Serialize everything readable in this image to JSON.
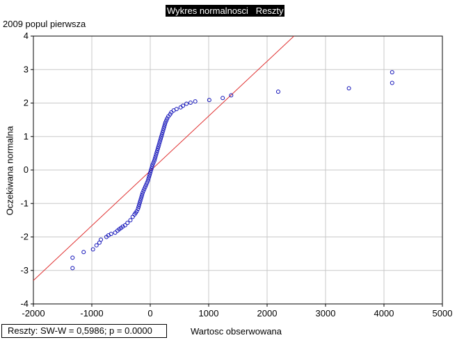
{
  "chart_data": {
    "type": "scatter",
    "title": "Wykres normalnosci   Reszty",
    "subtitle": "2009 popul pierwsza",
    "xlabel": "Wartosc obserwowana",
    "ylabel": "Oczekiwana normalna",
    "xlim": [
      -2000,
      5000
    ],
    "ylim": [
      -4,
      4
    ],
    "x_ticks": [
      "-2000",
      "-1000",
      "0",
      "1000",
      "2000",
      "3000",
      "4000",
      "5000"
    ],
    "y_ticks": [
      "4",
      "3",
      "2",
      "1",
      "0",
      "-1",
      "-2",
      "-3",
      "-4"
    ],
    "grid": true,
    "reference_line": {
      "x": [
        -2000,
        2460
      ],
      "y": [
        -3.3,
        4.0
      ],
      "color": "#e03030"
    },
    "point_color": "#1010b8",
    "stats_text": "Reszty:  SW-W = 0,5986; p = 0.0000",
    "series": [
      {
        "points": [
          [
            -1330,
            -2.93
          ],
          [
            -1330,
            -2.62
          ],
          [
            -1140,
            -2.45
          ],
          [
            -980,
            -2.37
          ],
          [
            -920,
            -2.25
          ],
          [
            -870,
            -2.17
          ],
          [
            -845,
            -2.08
          ],
          [
            -750,
            -2.0
          ],
          [
            -715,
            -1.95
          ],
          [
            -670,
            -1.91
          ],
          [
            -600,
            -1.87
          ],
          [
            -560,
            -1.81
          ],
          [
            -530,
            -1.77
          ],
          [
            -500,
            -1.73
          ],
          [
            -470,
            -1.69
          ],
          [
            -430,
            -1.65
          ],
          [
            -390,
            -1.58
          ],
          [
            -340,
            -1.5
          ],
          [
            -300,
            -1.4
          ],
          [
            -270,
            -1.33
          ],
          [
            -250,
            -1.28
          ],
          [
            -230,
            -1.23
          ],
          [
            -210,
            -1.16
          ],
          [
            -200,
            -1.1
          ],
          [
            -190,
            -1.04
          ],
          [
            -180,
            -0.98
          ],
          [
            -170,
            -0.92
          ],
          [
            -160,
            -0.86
          ],
          [
            -150,
            -0.8
          ],
          [
            -140,
            -0.74
          ],
          [
            -130,
            -0.68
          ],
          [
            -115,
            -0.62
          ],
          [
            -100,
            -0.56
          ],
          [
            -85,
            -0.5
          ],
          [
            -70,
            -0.44
          ],
          [
            -55,
            -0.38
          ],
          [
            -40,
            -0.32
          ],
          [
            -30,
            -0.26
          ],
          [
            -20,
            -0.2
          ],
          [
            -10,
            -0.14
          ],
          [
            0,
            -0.08
          ],
          [
            10,
            -0.02
          ],
          [
            20,
            0.04
          ],
          [
            30,
            0.1
          ],
          [
            40,
            0.16
          ],
          [
            55,
            0.22
          ],
          [
            70,
            0.28
          ],
          [
            80,
            0.34
          ],
          [
            90,
            0.4
          ],
          [
            100,
            0.46
          ],
          [
            110,
            0.52
          ],
          [
            120,
            0.58
          ],
          [
            130,
            0.64
          ],
          [
            140,
            0.7
          ],
          [
            150,
            0.76
          ],
          [
            160,
            0.82
          ],
          [
            170,
            0.88
          ],
          [
            180,
            0.94
          ],
          [
            190,
            1.0
          ],
          [
            200,
            1.06
          ],
          [
            210,
            1.12
          ],
          [
            220,
            1.18
          ],
          [
            230,
            1.24
          ],
          [
            240,
            1.3
          ],
          [
            250,
            1.36
          ],
          [
            260,
            1.42
          ],
          [
            275,
            1.48
          ],
          [
            290,
            1.54
          ],
          [
            310,
            1.6
          ],
          [
            340,
            1.66
          ],
          [
            360,
            1.72
          ],
          [
            400,
            1.78
          ],
          [
            450,
            1.82
          ],
          [
            520,
            1.87
          ],
          [
            560,
            1.92
          ],
          [
            620,
            1.98
          ],
          [
            690,
            2.01
          ],
          [
            770,
            2.05
          ],
          [
            1010,
            2.09
          ],
          [
            1240,
            2.15
          ],
          [
            1385,
            2.23
          ],
          [
            2190,
            2.34
          ],
          [
            3400,
            2.44
          ],
          [
            4140,
            2.6
          ],
          [
            4140,
            2.92
          ]
        ]
      }
    ]
  }
}
